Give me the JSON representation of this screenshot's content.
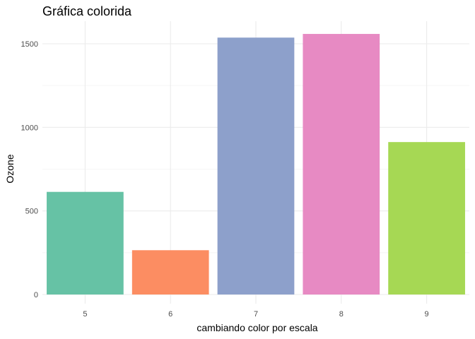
{
  "chart_data": {
    "type": "bar",
    "title": "Gráfica colorida",
    "xlabel": "cambiando color por escala",
    "ylabel": "Ozone",
    "categories": [
      "5",
      "6",
      "7",
      "8",
      "9"
    ],
    "values": [
      614,
      265,
      1537,
      1559,
      912
    ],
    "colors": [
      "#66c2a5",
      "#fc8d62",
      "#8da0cb",
      "#e78ac3",
      "#a6d854"
    ],
    "ylim": [
      0,
      1620
    ],
    "yticks": [
      0,
      500,
      1000,
      1500
    ],
    "grid": true,
    "legend": "none"
  }
}
